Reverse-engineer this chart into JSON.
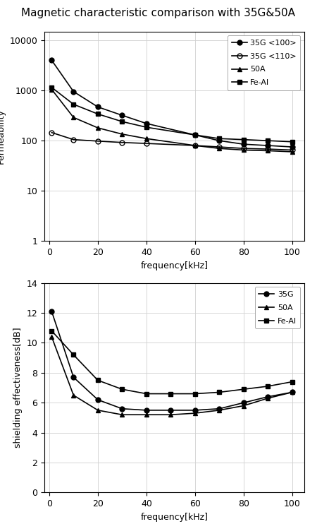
{
  "title": "Magnetic characteristic comparison with 35G&50A",
  "plot1": {
    "xlabel": "frequency[kHz]",
    "ylabel": "Permeability",
    "xlim": [
      -2,
      105
    ],
    "ylim_log": [
      1,
      15000
    ],
    "xticks": [
      0,
      20,
      40,
      60,
      80,
      100
    ],
    "yticks_log": [
      1,
      10,
      100,
      1000,
      10000
    ],
    "ytick_labels": [
      "1",
      "10",
      "100",
      "1000",
      "10000"
    ],
    "series": [
      {
        "label": "35G <100>",
        "x": [
          1,
          10,
          20,
          30,
          40,
          60,
          70,
          80,
          90,
          100
        ],
        "y": [
          4000,
          950,
          470,
          320,
          220,
          130,
          100,
          85,
          80,
          75
        ],
        "marker": "o",
        "fillstyle": "full",
        "color": "#000000",
        "linewidth": 1.2,
        "markersize": 5
      },
      {
        "label": "35G <110>",
        "x": [
          1,
          10,
          20,
          30,
          40,
          60,
          70,
          80,
          90,
          100
        ],
        "y": [
          145,
          105,
          98,
          92,
          88,
          80,
          75,
          70,
          68,
          65
        ],
        "marker": "o",
        "fillstyle": "none",
        "color": "#000000",
        "linewidth": 1.2,
        "markersize": 5
      },
      {
        "label": "50A",
        "x": [
          1,
          10,
          20,
          30,
          40,
          60,
          70,
          80,
          90,
          100
        ],
        "y": [
          1050,
          290,
          180,
          135,
          110,
          80,
          70,
          65,
          63,
          60
        ],
        "marker": "^",
        "fillstyle": "full",
        "color": "#000000",
        "linewidth": 1.2,
        "markersize": 5
      },
      {
        "label": "Fe-Al",
        "x": [
          1,
          10,
          20,
          30,
          40,
          60,
          70,
          80,
          90,
          100
        ],
        "y": [
          1150,
          530,
          340,
          240,
          185,
          130,
          110,
          105,
          100,
          95
        ],
        "marker": "s",
        "fillstyle": "full",
        "color": "#000000",
        "linewidth": 1.2,
        "markersize": 5
      }
    ]
  },
  "plot2": {
    "xlabel": "frequency[kHz]",
    "ylabel": "shielding effectiveness[dB]",
    "xlim": [
      -2,
      105
    ],
    "ylim": [
      0,
      14
    ],
    "yticks": [
      0,
      2,
      4,
      6,
      8,
      10,
      12,
      14
    ],
    "xticks": [
      0,
      20,
      40,
      60,
      80,
      100
    ],
    "series": [
      {
        "label": "35G",
        "x": [
          1,
          10,
          20,
          30,
          40,
          50,
          60,
          70,
          80,
          90,
          100
        ],
        "y": [
          12.1,
          7.7,
          6.2,
          5.6,
          5.5,
          5.5,
          5.5,
          5.6,
          6.0,
          6.4,
          6.7
        ],
        "marker": "o",
        "fillstyle": "full",
        "color": "#000000",
        "linewidth": 1.2,
        "markersize": 5
      },
      {
        "label": "50A",
        "x": [
          1,
          10,
          20,
          30,
          40,
          50,
          60,
          70,
          80,
          90,
          100
        ],
        "y": [
          10.4,
          6.5,
          5.5,
          5.2,
          5.2,
          5.2,
          5.3,
          5.5,
          5.8,
          6.3,
          6.7
        ],
        "marker": "^",
        "fillstyle": "full",
        "color": "#000000",
        "linewidth": 1.2,
        "markersize": 5
      },
      {
        "label": "Fe-Al",
        "x": [
          1,
          10,
          20,
          30,
          40,
          50,
          60,
          70,
          80,
          90,
          100
        ],
        "y": [
          10.8,
          9.2,
          7.5,
          6.9,
          6.6,
          6.6,
          6.6,
          6.7,
          6.9,
          7.1,
          7.4
        ],
        "marker": "s",
        "fillstyle": "full",
        "color": "#000000",
        "linewidth": 1.2,
        "markersize": 5
      }
    ]
  },
  "background_color": "#ffffff",
  "grid_color": "#d0d0d0",
  "title_fontsize": 11,
  "label_fontsize": 9,
  "tick_fontsize": 9,
  "legend_fontsize": 8
}
